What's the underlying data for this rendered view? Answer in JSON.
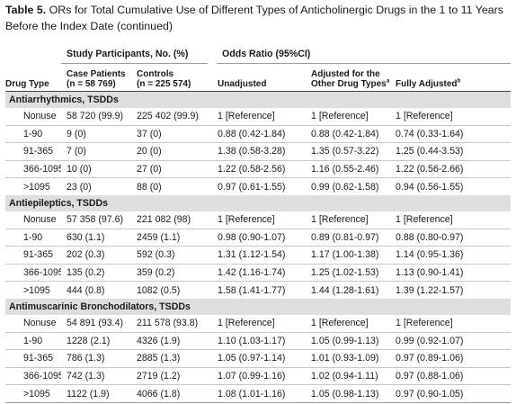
{
  "title": {
    "label": "Table 5.",
    "text": "ORs for Total Cumulative Use of Different Types of Anticholinergic Drugs in the 1 to 11 Years Before the Index Date (continued)"
  },
  "header": {
    "group_participants": "Study Participants, No. (%)",
    "group_or": "Odds Ratio (95%CI)",
    "drug_type": "Drug Type",
    "case_patients_line1": "Case Patients",
    "case_patients_line2": "(n = 58 769)",
    "controls_line1": "Controls",
    "controls_line2": "(n = 225 574)",
    "unadjusted": "Unadjusted",
    "adjusted_line1": "Adjusted for the",
    "adjusted_line2": "Other Drug Types",
    "adjusted_sup": "a",
    "fully_adjusted": "Fully Adjusted",
    "fully_adjusted_sup": "b"
  },
  "sections": [
    {
      "title": "Antiarrhythmics, TSDDs",
      "rows": [
        {
          "type": "Nonuse",
          "cases": "58 720 (99.9)",
          "controls": "225 402 (99.9)",
          "unadjusted": "1 [Reference]",
          "adjusted": "1 [Reference]",
          "fully": "1 [Reference]"
        },
        {
          "type": "1-90",
          "cases": "9 (0)",
          "controls": "37 (0)",
          "unadjusted": "0.88 (0.42-1.84)",
          "adjusted": "0.88 (0.42-1.84)",
          "fully": "0.74 (0.33-1.64)"
        },
        {
          "type": "91-365",
          "cases": "7 (0)",
          "controls": "20 (0)",
          "unadjusted": "1.38 (0.58-3.28)",
          "adjusted": "1.35 (0.57-3.22)",
          "fully": "1.25 (0.44-3.53)"
        },
        {
          "type": "366-1095",
          "cases": "10 (0)",
          "controls": "27 (0)",
          "unadjusted": "1.22 (0.58-2.56)",
          "adjusted": "1.16 (0.55-2.46)",
          "fully": "1.22 (0.56-2.66)"
        },
        {
          "type": ">1095",
          "cases": "23 (0)",
          "controls": "88 (0)",
          "unadjusted": "0.97 (0.61-1.55)",
          "adjusted": "0.99 (0.62-1.58)",
          "fully": "0.94 (0.56-1.55)"
        }
      ]
    },
    {
      "title": "Antiepileptics, TSDDs",
      "rows": [
        {
          "type": "Nonuse",
          "cases": "57 358 (97.6)",
          "controls": "221 082 (98)",
          "unadjusted": "1 [Reference]",
          "adjusted": "1 [Reference]",
          "fully": "1 [Reference]"
        },
        {
          "type": "1-90",
          "cases": "630 (1.1)",
          "controls": "2459 (1.1)",
          "unadjusted": "0.98 (0.90-1.07)",
          "adjusted": "0.89 (0.81-0.97)",
          "fully": "0.88 (0.80-0.97)"
        },
        {
          "type": "91-365",
          "cases": "202 (0.3)",
          "controls": "592 (0.3)",
          "unadjusted": "1.31 (1.12-1.54)",
          "adjusted": "1.17 (1.00-1.38)",
          "fully": "1.14 (0.95-1.36)"
        },
        {
          "type": "366-1095",
          "cases": "135 (0.2)",
          "controls": "359 (0.2)",
          "unadjusted": "1.42 (1.16-1.74)",
          "adjusted": "1.25 (1.02-1.53)",
          "fully": "1.13 (0.90-1.41)"
        },
        {
          "type": ">1095",
          "cases": "444 (0.8)",
          "controls": "1082 (0.5)",
          "unadjusted": "1.58 (1.41-1.77)",
          "adjusted": "1.44 (1.28-1.61)",
          "fully": "1.39 (1.22-1.57)"
        }
      ]
    },
    {
      "title": "Antimuscarinic Bronchodilators, TSDDs",
      "rows": [
        {
          "type": "Nonuse",
          "cases": "54 891 (93.4)",
          "controls": "211 578 (93.8)",
          "unadjusted": "1 [Reference]",
          "adjusted": "1 [Reference]",
          "fully": "1 [Reference]"
        },
        {
          "type": "1-90",
          "cases": "1228 (2.1)",
          "controls": "4326 (1.9)",
          "unadjusted": "1.10 (1.03-1.17)",
          "adjusted": "1.05 (0.99-1.13)",
          "fully": "0.99 (0.92-1.07)"
        },
        {
          "type": "91-365",
          "cases": "786 (1.3)",
          "controls": "2885 (1.3)",
          "unadjusted": "1.05 (0.97-1.14)",
          "adjusted": "1.01 (0.93-1.09)",
          "fully": "0.97 (0.89-1.06)"
        },
        {
          "type": "366-1095",
          "cases": "742 (1.3)",
          "controls": "2719 (1.2)",
          "unadjusted": "1.07 (0.99-1.16)",
          "adjusted": "1.02 (0.94-1.11)",
          "fully": "0.97 (0.88-1.06)"
        },
        {
          "type": ">1095",
          "cases": "1122 (1.9)",
          "controls": "4066 (1.8)",
          "unadjusted": "1.08 (1.01-1.16)",
          "adjusted": "1.05 (0.98-1.13)",
          "fully": "0.97 (0.90-1.05)"
        }
      ]
    }
  ]
}
